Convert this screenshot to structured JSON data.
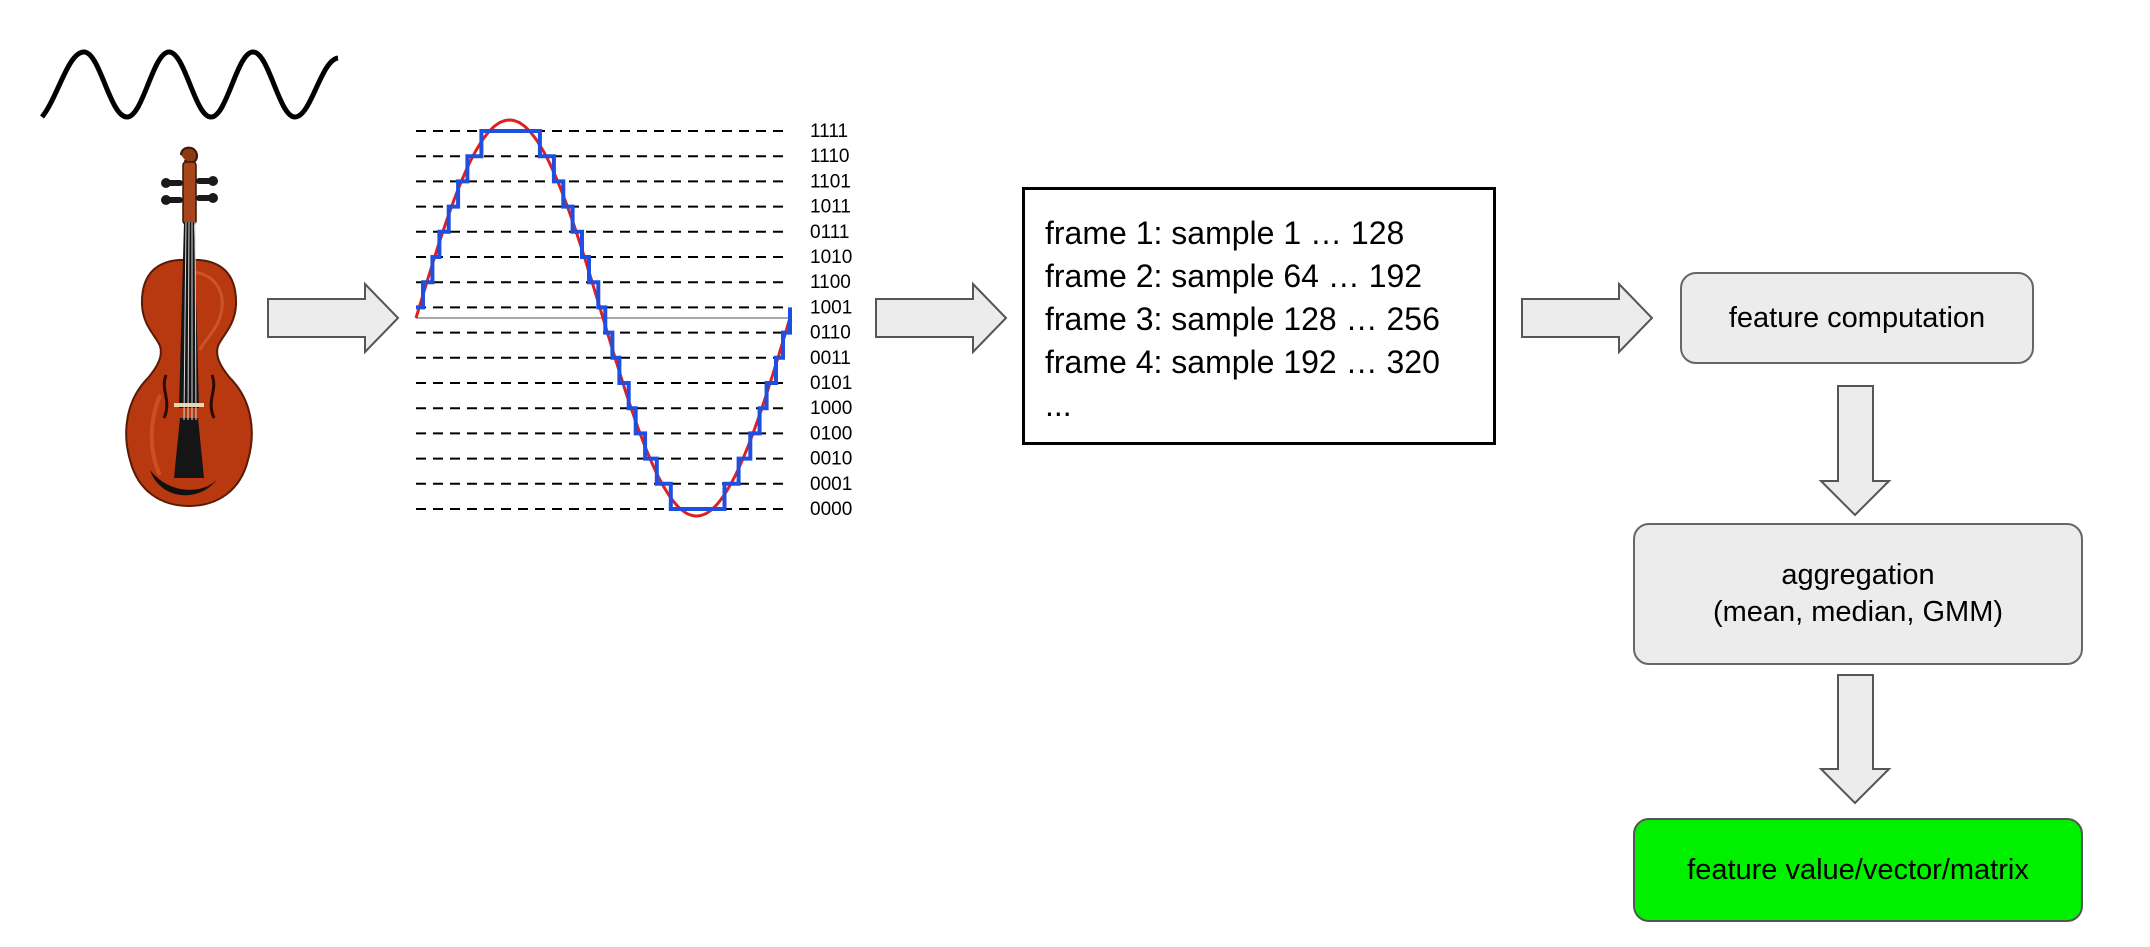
{
  "diagram": {
    "quantization_levels": [
      "1111",
      "1110",
      "1101",
      "1011",
      "0111",
      "1010",
      "1100",
      "1001",
      "0110",
      "0011",
      "0101",
      "1000",
      "0100",
      "0010",
      "0001",
      "0000"
    ],
    "frames": [
      "frame 1: sample 1 … 128",
      "frame 2: sample 64 … 192",
      "frame 3: sample 128 … 256",
      "frame 4: sample 192 … 320",
      "..."
    ],
    "feature_box": "feature computation",
    "aggregation_box": {
      "line1": "aggregation",
      "line2": "(mean, median, GMM)"
    },
    "output_box": "feature value/vector/matrix",
    "colors": {
      "analog_wave": "#e02020",
      "quantized_wave": "#1f4fe0",
      "process_box": "#ececec",
      "output_box": "#00f000",
      "arrow_fill": "#ececec",
      "arrow_stroke": "#555555"
    },
    "icons": [
      "sound-wave-icon",
      "violin-icon"
    ]
  }
}
